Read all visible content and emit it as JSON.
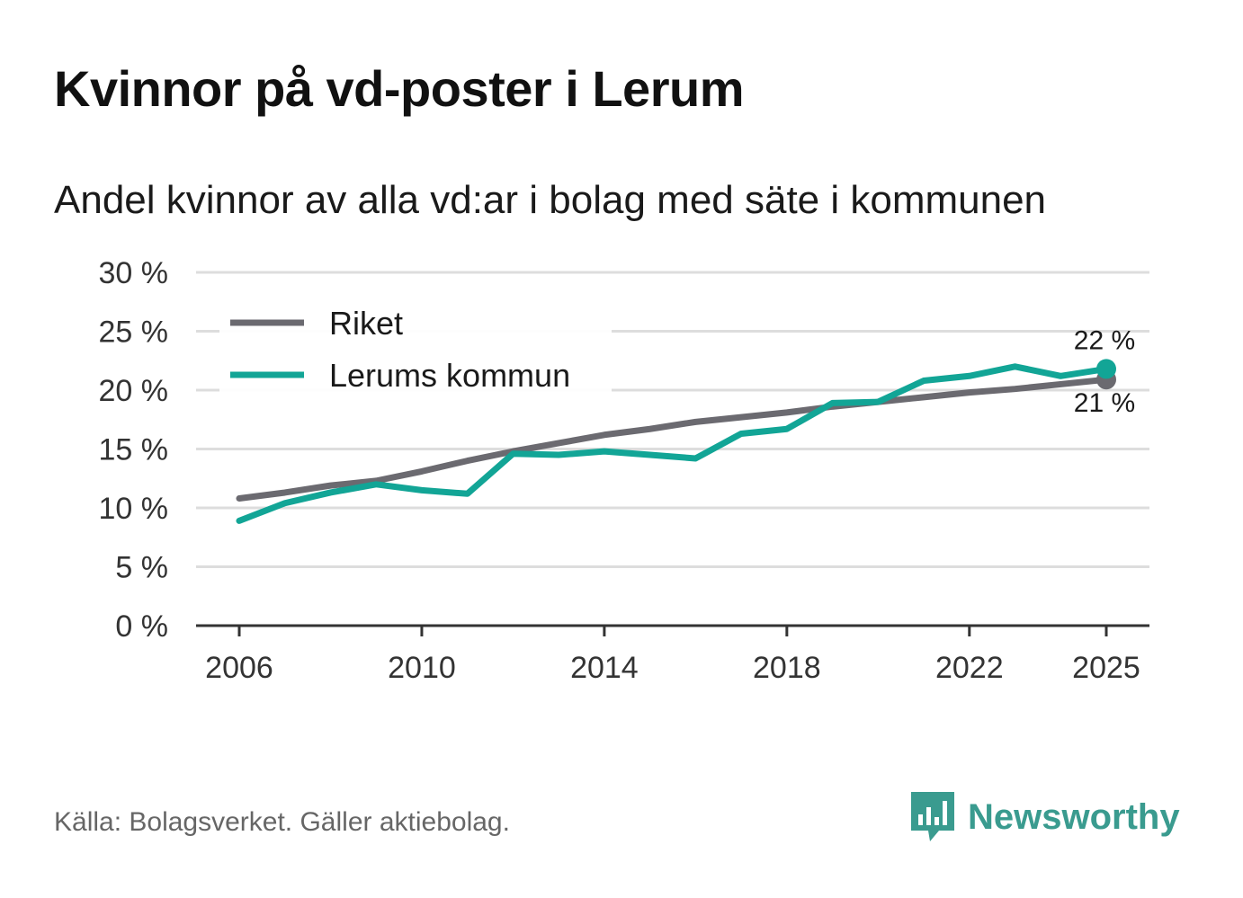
{
  "title": "Kvinnor på vd-poster i Lerum",
  "subtitle": "Andel kvinnor av alla vd:ar i bolag med säte i kommunen",
  "source": "Källa: Bolagsverket. Gäller aktiebolag.",
  "brand": "Newsworthy",
  "logo_icon": "newsworthy-bar-chart-icon",
  "colors": {
    "riket": "#6b6a70",
    "lerum": "#12a596",
    "grid": "#dddddd",
    "axis": "#333333",
    "brand": "#3a9b8f"
  },
  "chart_data": {
    "type": "line",
    "title": "Kvinnor på vd-poster i Lerum",
    "subtitle": "Andel kvinnor av alla vd:ar i bolag med säte i kommunen",
    "xlabel": "",
    "ylabel": "",
    "ylim": [
      0,
      30
    ],
    "xlim": [
      2006,
      2025
    ],
    "y_ticks": [
      0,
      5,
      10,
      15,
      20,
      25,
      30
    ],
    "y_tick_labels": [
      "0 %",
      "5 %",
      "10 %",
      "15 %",
      "20 %",
      "25 %",
      "30 %"
    ],
    "x_ticks": [
      2006,
      2010,
      2014,
      2018,
      2022,
      2025
    ],
    "x_tick_labels": [
      "2006",
      "2010",
      "2014",
      "2018",
      "2022",
      "2025"
    ],
    "grid": true,
    "legend_position": "top-left",
    "x": [
      2006,
      2007,
      2008,
      2009,
      2010,
      2011,
      2012,
      2013,
      2014,
      2015,
      2016,
      2017,
      2018,
      2019,
      2020,
      2021,
      2022,
      2023,
      2024,
      2025
    ],
    "series": [
      {
        "name": "Riket",
        "color": "#6b6a70",
        "values": [
          10.8,
          11.3,
          11.9,
          12.3,
          13.1,
          14.0,
          14.8,
          15.5,
          16.2,
          16.7,
          17.3,
          17.7,
          18.1,
          18.6,
          19.0,
          19.4,
          19.8,
          20.1,
          20.5,
          20.9
        ],
        "end_label": "21 %"
      },
      {
        "name": "Lerums kommun",
        "color": "#12a596",
        "values": [
          8.9,
          10.4,
          11.3,
          12.0,
          11.5,
          11.2,
          14.6,
          14.5,
          14.8,
          14.5,
          14.2,
          16.3,
          16.7,
          18.9,
          19.0,
          20.8,
          21.2,
          22.0,
          21.2,
          21.8
        ],
        "end_label": "22 %"
      }
    ]
  }
}
